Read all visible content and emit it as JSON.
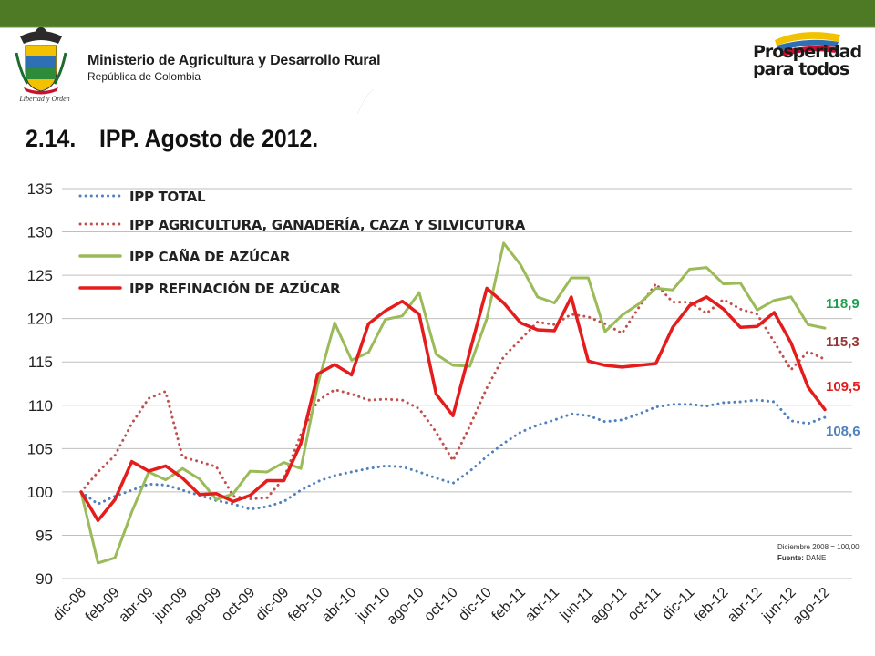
{
  "header": {
    "ministry_name": "Ministerio de Agricultura y Desarrollo Rural",
    "country": "República de Colombia",
    "motto": "Libertad y Orden",
    "campaign_line1": "Prosperidad",
    "campaign_line2": "para todos",
    "brand_green": "#4e7a26"
  },
  "page": {
    "title_number": "2.14.",
    "title_text": "IPP. Agosto de 2012."
  },
  "notes": {
    "base": "Diciembre 2008 = 100,00",
    "source_label": "Fuente:",
    "source_value": "DANE"
  },
  "chart_data": {
    "type": "line",
    "ylim": [
      90,
      135
    ],
    "yticks": [
      90,
      95,
      100,
      105,
      110,
      115,
      120,
      125,
      130,
      135
    ],
    "grid": true,
    "legend_position": "top-left",
    "x": [
      "dic-08",
      "ene-09",
      "feb-09",
      "mar-09",
      "abr-09",
      "may-09",
      "jun-09",
      "jul-09",
      "ago-09",
      "sep-09",
      "oct-09",
      "nov-09",
      "dic-09",
      "ene-10",
      "feb-10",
      "mar-10",
      "abr-10",
      "may-10",
      "jun-10",
      "jul-10",
      "ago-10",
      "sep-10",
      "oct-10",
      "nov-10",
      "dic-10",
      "ene-11",
      "feb-11",
      "mar-11",
      "abr-11",
      "may-11",
      "jun-11",
      "jul-11",
      "ago-11",
      "sep-11",
      "oct-11",
      "nov-11",
      "dic-11",
      "ene-12",
      "feb-12",
      "mar-12",
      "abr-12",
      "may-12",
      "jun-12",
      "jul-12",
      "ago-12"
    ],
    "x_tick_labels": [
      "dic-08",
      "feb-09",
      "abr-09",
      "jun-09",
      "ago-09",
      "oct-09",
      "dic-09",
      "feb-10",
      "abr-10",
      "jun-10",
      "ago-10",
      "oct-10",
      "dic-10",
      "feb-11",
      "abr-11",
      "jun-11",
      "ago-11",
      "oct-11",
      "dic-11",
      "feb-12",
      "abr-12",
      "jun-12",
      "ago-12"
    ],
    "series": [
      {
        "name": "IPP TOTAL",
        "color": "#4f81bd",
        "style": "dotted",
        "end_label": "108,6",
        "values": [
          100.0,
          98.6,
          99.5,
          100.2,
          100.9,
          100.8,
          100.2,
          99.6,
          99.0,
          98.6,
          98.0,
          98.3,
          98.9,
          100.2,
          101.2,
          101.9,
          102.3,
          102.7,
          103.0,
          102.9,
          102.3,
          101.6,
          101.0,
          102.4,
          104.1,
          105.6,
          106.9,
          107.7,
          108.3,
          109.0,
          108.8,
          108.1,
          108.3,
          109.0,
          109.8,
          110.1,
          110.1,
          109.9,
          110.3,
          110.4,
          110.6,
          110.4,
          108.2,
          107.9,
          108.6
        ]
      },
      {
        "name": "IPP AGRICULTURA, GANADERÍA, CAZA Y SILVICUTURA",
        "color": "#c0504d",
        "style": "dotted",
        "end_label": "115,3",
        "values": [
          100.0,
          102.3,
          104.2,
          107.9,
          110.8,
          111.6,
          104.0,
          103.5,
          102.9,
          99.5,
          99.2,
          99.3,
          101.6,
          106.6,
          110.5,
          111.8,
          111.3,
          110.6,
          110.7,
          110.6,
          109.6,
          106.9,
          103.6,
          107.6,
          112.0,
          115.6,
          117.6,
          119.6,
          119.3,
          120.5,
          120.2,
          119.4,
          118.3,
          121.3,
          124.0,
          121.9,
          121.9,
          120.6,
          122.2,
          121.1,
          120.5,
          117.3,
          114.1,
          116.2,
          115.3
        ]
      },
      {
        "name": "IPP CAÑA DE AZÚCAR",
        "color": "#9bbb59",
        "style": "solid",
        "end_label": "118,9",
        "values": [
          100.0,
          91.8,
          92.4,
          97.7,
          102.3,
          101.4,
          102.7,
          101.5,
          99.1,
          99.8,
          102.4,
          102.3,
          103.4,
          102.7,
          112.4,
          119.5,
          115.2,
          116.1,
          119.9,
          120.3,
          123.0,
          115.9,
          114.6,
          114.5,
          120.0,
          128.7,
          126.2,
          122.5,
          121.8,
          124.7,
          124.7,
          118.5,
          120.4,
          121.7,
          123.5,
          123.3,
          125.7,
          125.9,
          124.0,
          124.1,
          121.0,
          122.1,
          122.5,
          119.3,
          118.9
        ]
      },
      {
        "name": "IPP REFINACIÓN DE AZÚCAR",
        "color": "#e41c1c",
        "style": "solid",
        "end_label": "109,5",
        "values": [
          100.0,
          96.7,
          99.1,
          103.5,
          102.4,
          103.0,
          101.6,
          99.7,
          99.8,
          98.9,
          99.6,
          101.3,
          101.3,
          105.6,
          113.6,
          114.7,
          113.5,
          119.4,
          120.9,
          122.0,
          120.5,
          111.3,
          108.8,
          116.2,
          123.5,
          121.8,
          119.5,
          118.7,
          118.6,
          122.5,
          115.1,
          114.6,
          114.4,
          114.6,
          114.8,
          119.0,
          121.5,
          122.5,
          121.1,
          119.0,
          119.1,
          120.7,
          117.2,
          112.1,
          109.5
        ]
      }
    ]
  }
}
